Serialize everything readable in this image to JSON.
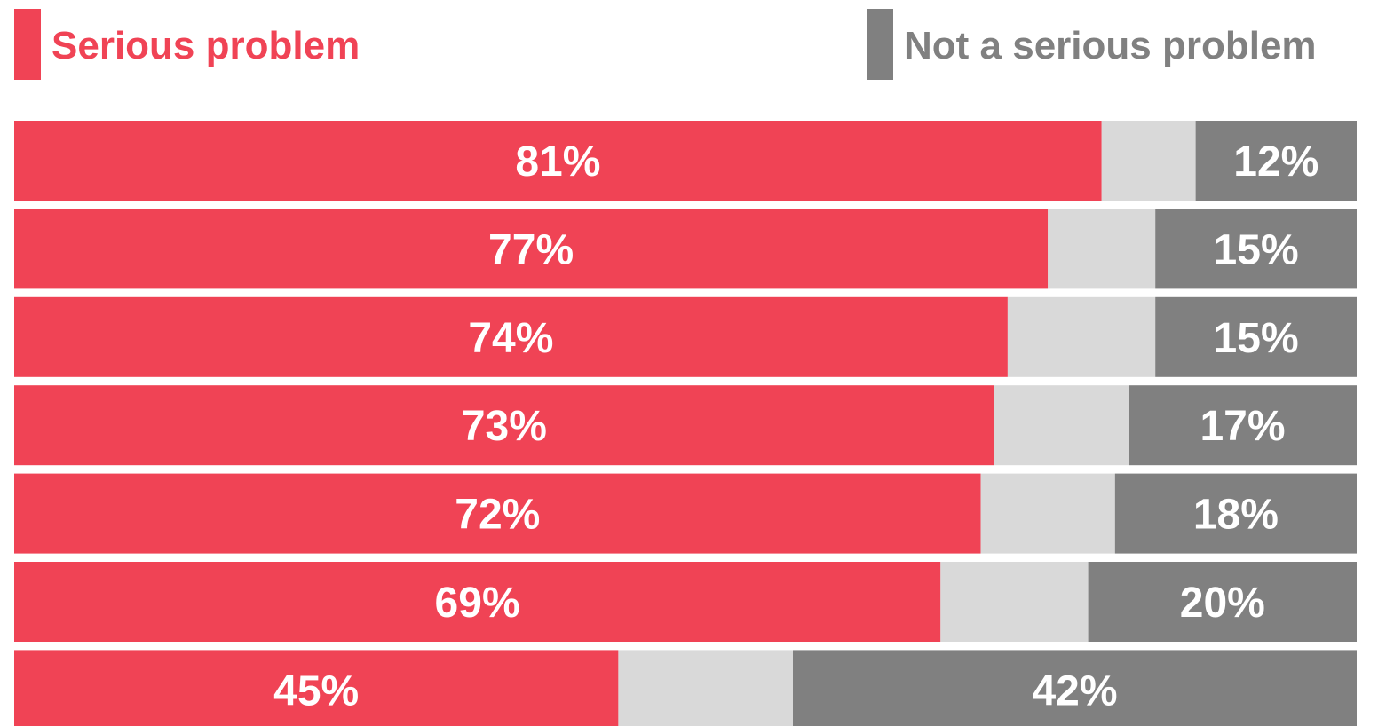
{
  "legend": {
    "serious_label": "Serious problem",
    "not_serious_label": "Not a serious problem"
  },
  "colors": {
    "serious": "#f04355",
    "neither": "#d9d9d9",
    "not_serious": "#808080",
    "label_text": "#ffffff"
  },
  "chart_data": {
    "type": "bar",
    "orientation": "horizontal",
    "stacked": true,
    "categories": [
      "",
      "",
      "",
      "",
      "",
      "",
      ""
    ],
    "series": [
      {
        "name": "Serious problem",
        "values": [
          81,
          77,
          74,
          73,
          72,
          69,
          45
        ],
        "labels": [
          "81%",
          "77%",
          "74%",
          "73%",
          "72%",
          "69%",
          "45%"
        ]
      },
      {
        "name": "",
        "values": [
          7,
          8,
          11,
          10,
          10,
          11,
          13
        ]
      },
      {
        "name": "Not a serious problem",
        "values": [
          12,
          15,
          15,
          17,
          18,
          20,
          42
        ],
        "labels": [
          "12%",
          "15%",
          "15%",
          "17%",
          "18%",
          "20%",
          "42%"
        ]
      }
    ],
    "xlim": [
      0,
      100
    ],
    "grid": false,
    "legend_position": "top"
  }
}
